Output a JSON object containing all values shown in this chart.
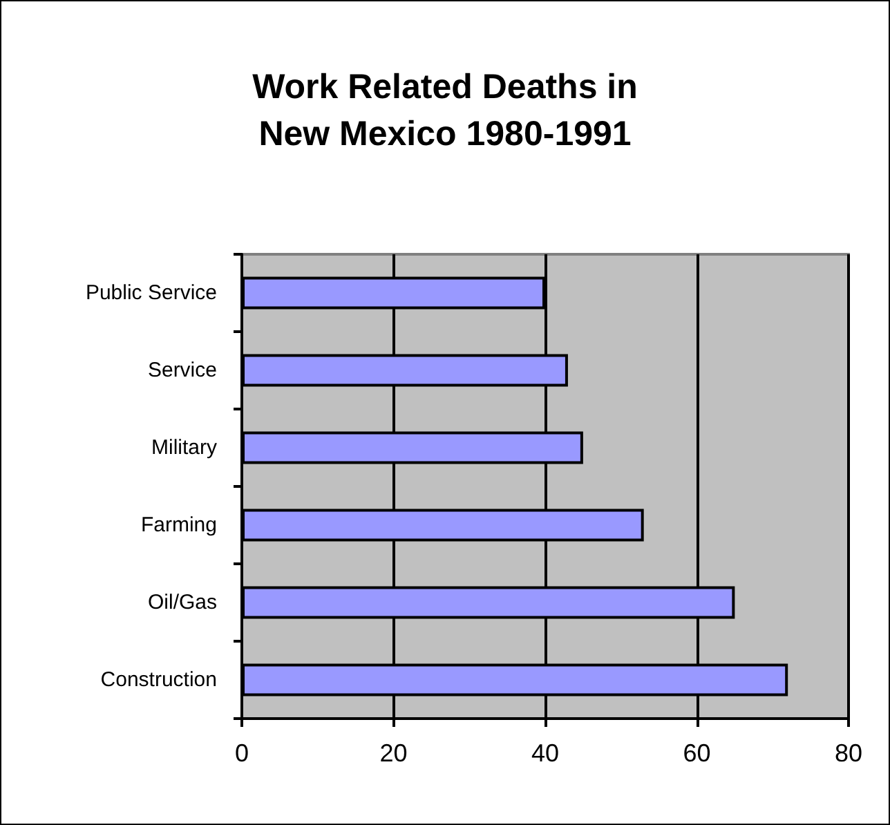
{
  "chart_data": {
    "type": "bar",
    "orientation": "horizontal",
    "title": "Work Related Deaths in\nNew Mexico 1980-1991",
    "categories": [
      "Public Service",
      "Service",
      "Military",
      "Farming",
      "Oil/Gas",
      "Construction"
    ],
    "values": [
      40,
      43,
      45,
      53,
      65,
      72
    ],
    "color": "#9999ff",
    "xlim": [
      0,
      80
    ],
    "xticks": [
      0,
      20,
      40,
      60,
      80
    ],
    "grid": "x"
  }
}
